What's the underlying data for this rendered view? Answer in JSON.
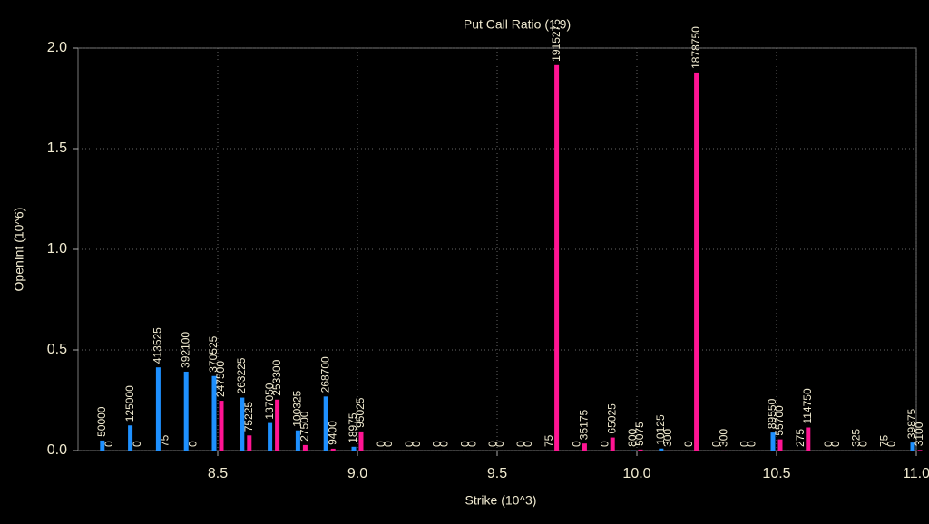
{
  "chart_data": {
    "type": "bar",
    "title": "Put Call Ratio (1.9)",
    "x_label": "Strike (10^3)",
    "y_label": "OpenInt (10^6)",
    "x": [
      8.1,
      8.2,
      8.3,
      8.4,
      8.5,
      8.6,
      8.7,
      8.8,
      8.9,
      9.0,
      9.1,
      9.2,
      9.3,
      9.4,
      9.5,
      9.6,
      9.7,
      9.8,
      9.9,
      10.0,
      10.1,
      10.2,
      10.3,
      10.4,
      10.5,
      10.6,
      10.7,
      10.8,
      10.9,
      11.0
    ],
    "series": [
      {
        "color": "#1e90ff",
        "values": [
          0.05,
          0.125,
          0.413525,
          0.3921,
          0.370525,
          0.263225,
          0.13705,
          0.100325,
          0.2687,
          0.018975,
          0,
          0,
          0,
          0,
          0,
          0,
          7.5e-05,
          0,
          0,
          0.0008,
          0.010125,
          0,
          0,
          0,
          0.08955,
          0.000275,
          0,
          0.000325,
          7.5e-05,
          0.039875
        ],
        "value_labels": [
          "50000",
          "125000",
          "413525",
          "392100",
          "370525",
          "263225",
          "137050",
          "100325",
          "268700",
          "18975",
          "0",
          "0",
          "0",
          "0",
          "0",
          "0",
          "75",
          "0",
          "0",
          "800",
          "10125",
          "0",
          "0",
          "0",
          "89550",
          "275",
          "0",
          "325",
          "75",
          "39875"
        ]
      },
      {
        "color": "#ff1493",
        "values": [
          0,
          0,
          7.5e-05,
          0,
          0.2475,
          0.075225,
          0.2533,
          0.0275,
          0.0094,
          0.095025,
          0,
          0,
          0,
          0,
          0,
          0,
          1.915275,
          0.035175,
          0.065025,
          0.005075,
          0.0003,
          1.87875,
          0.0003,
          0,
          0.0557,
          0.11475,
          0,
          0,
          0,
          0.0031
        ],
        "value_labels": [
          "0",
          "0",
          "75",
          "0",
          "247500",
          "75225",
          "253300",
          "27500",
          "9400",
          "95025",
          "0",
          "0",
          "0",
          "0",
          "0",
          "0",
          "1915275",
          "35175",
          "65025",
          "5075",
          "300",
          "1878750",
          "300",
          "0",
          "55700",
          "114750",
          "0",
          "0",
          "0",
          "3100"
        ]
      }
    ],
    "xlim": [
      8.0,
      11.0
    ],
    "ylim": [
      0,
      2.0
    ],
    "xticks": [
      {
        "value": 8.5,
        "label": "8.5"
      },
      {
        "value": 9.0,
        "label": "9.0"
      },
      {
        "value": 9.5,
        "label": "9.5"
      },
      {
        "value": 10.0,
        "label": "10.0"
      },
      {
        "value": 10.5,
        "label": "10.5"
      },
      {
        "value": 11.0,
        "label": "11.0"
      }
    ],
    "yticks": [
      {
        "value": 0,
        "label": "0.0"
      },
      {
        "value": 0.5,
        "label": "0.5"
      },
      {
        "value": 1.0,
        "label": "1.0"
      },
      {
        "value": 1.5,
        "label": "1.5"
      },
      {
        "value": 2.0,
        "label": "2.0"
      }
    ],
    "grid": true
  }
}
